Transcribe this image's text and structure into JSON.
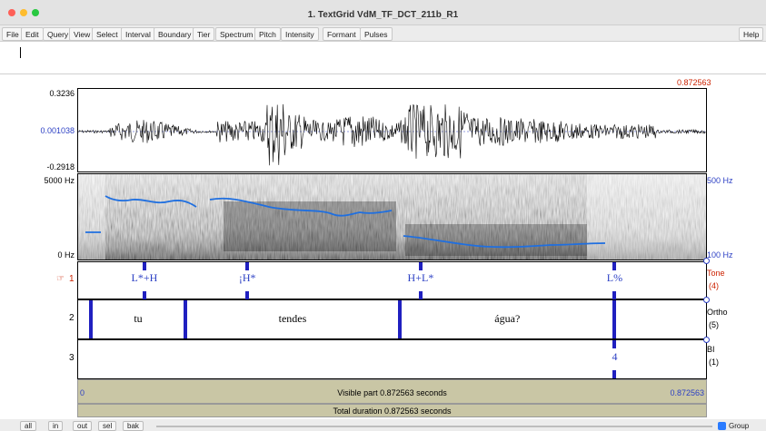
{
  "window": {
    "title": "1. TextGrid VdM_TF_DCT_211b_R1"
  },
  "menu": {
    "items": [
      "File",
      "Edit",
      "Query",
      "View",
      "Select",
      "Interval",
      "Boundary",
      "Tier",
      "Spectrum",
      "Pitch",
      "Intensity",
      "Formant",
      "Pulses"
    ],
    "help": "Help"
  },
  "editor": {
    "cursor_time": "0.872563",
    "waveform": {
      "max": "0.3236",
      "center": "0.001038",
      "min": "-0.2918"
    },
    "spectrogram": {
      "top": "5000 Hz",
      "bottom": "0 Hz",
      "pitch_top": "500 Hz",
      "pitch_bottom": "100 Hz"
    },
    "tiers": [
      {
        "number": "1",
        "pointer": "☞",
        "name": "Tone",
        "count": "(4)",
        "points": [
          {
            "label": "L*+H",
            "t": 0.1055
          },
          {
            "label": "¡H*",
            "t": 0.2695
          },
          {
            "label": "H+L*",
            "t": 0.5455
          },
          {
            "label": "L%",
            "t": 0.8545
          }
        ]
      },
      {
        "number": "2",
        "name": "Ortho",
        "count": "(5)",
        "boundaries": [
          0.0205,
          0.1705,
          0.5125,
          0.8545
        ],
        "intervals": [
          {
            "label": "tu",
            "center": 0.0955
          },
          {
            "label": "tendes",
            "center": 0.3415
          },
          {
            "label": "água?",
            "center": 0.6835
          }
        ]
      },
      {
        "number": "3",
        "name": "BI",
        "count": "(1)",
        "points": [
          {
            "label": "4",
            "t": 0.8545
          }
        ]
      }
    ],
    "visible": {
      "start": "0",
      "end": "0.872563",
      "label": "Visible part 0.872563 seconds"
    },
    "total": {
      "label": "Total duration 0.872563 seconds"
    }
  },
  "bottom": {
    "buttons": [
      "all",
      "in",
      "out",
      "sel",
      "bak"
    ],
    "group_label": "Group",
    "group_checked": true
  },
  "colors": {
    "accent": "#2b3fc4",
    "cursor": "#cc2200",
    "pitch": "#1f6fe0",
    "bar": "#c9c6a5"
  }
}
